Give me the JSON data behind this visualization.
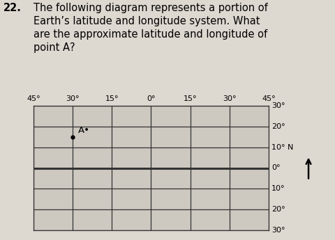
{
  "title_number": "22.",
  "title_text": "The following diagram represents a portion of\nEarth’s latitude and longitude system. What\nare the approximate latitude and longitude of\npoint A?",
  "title_fontsize": 10.5,
  "background_color": "#ddd8d0",
  "grid_color": "#333333",
  "grid_linewidth": 0.9,
  "equator_linewidth": 2.2,
  "lon_labels": [
    "45°",
    "30°",
    "15°",
    "0°",
    "15°",
    "30°",
    "45°"
  ],
  "lon_values": [
    -45,
    -30,
    -15,
    0,
    15,
    30,
    45
  ],
  "lat_labels": [
    "30°",
    "20°",
    "10° N",
    "0°",
    "10°",
    "20°",
    "30°"
  ],
  "lat_values": [
    30,
    20,
    10,
    0,
    -10,
    -20,
    -30
  ],
  "point_A_lon": -30,
  "point_A_lat": 15,
  "point_fontsize": 9.5,
  "grid_bg": "#cdc8c0",
  "lon_min": -45,
  "lon_max": 45,
  "lat_min": -30,
  "lat_max": 30
}
